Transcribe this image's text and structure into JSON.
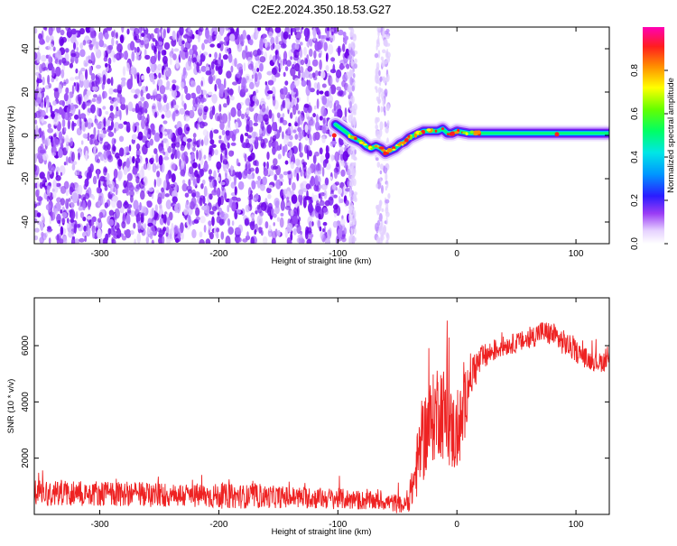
{
  "title": "C2E2.2024.350.18.53.G27",
  "colors": {
    "snr_line": "#ee2222",
    "frame": "#000000",
    "background": "#ffffff",
    "noise_purple": "#7a1ef0",
    "colormap": [
      "#ffffff",
      "#c8a8ff",
      "#7a00f0",
      "#3030ff",
      "#00c8ff",
      "#00ff80",
      "#80ff00",
      "#ffff00",
      "#ff8000",
      "#ff2020",
      "#ff00a0"
    ]
  },
  "chart_data": [
    {
      "type": "heatmap",
      "title": "C2E2.2024.350.18.53.G27",
      "xlabel": "Height of straight line (km)",
      "ylabel": "Frequency (Hz)",
      "xlim": [
        -355,
        128
      ],
      "ylim": [
        -50,
        50
      ],
      "x_ticks": [
        -300,
        -200,
        -100,
        0,
        100
      ],
      "y_ticks": [
        -40,
        -20,
        0,
        20,
        40
      ],
      "grid": false,
      "noise_region_x": [
        -355,
        -88
      ],
      "noise_bands_x": [
        [
          -90,
          -85
        ],
        [
          -68,
          -57
        ]
      ],
      "signal_track": {
        "x": [
          -102,
          -97,
          -92,
          -88,
          -84,
          -80,
          -76,
          -72,
          -68,
          -64,
          -60,
          -56,
          -52,
          -48,
          -44,
          -40,
          -36,
          -32,
          -28,
          -24,
          -20,
          -16,
          -12,
          -8,
          -4,
          0,
          10,
          30,
          60,
          85,
          100,
          128
        ],
        "y": [
          5,
          3,
          1,
          -1,
          -2,
          -3,
          -5,
          -6,
          -5,
          -6,
          -8,
          -7,
          -6,
          -4,
          -3,
          -1,
          0,
          1,
          2,
          2,
          2,
          2,
          3,
          1,
          1,
          2,
          1,
          1,
          1,
          1,
          1,
          1
        ]
      },
      "colorbar": {
        "label": "Normalized spectral amplitude",
        "range": [
          0.0,
          1.0
        ],
        "ticks": [
          0.0,
          0.2,
          0.4,
          0.6,
          0.8
        ],
        "tick_labels": [
          "0.0",
          "0.2",
          "0.4",
          "0.6",
          "0.8"
        ]
      },
      "x_tick_labels": [
        "-300",
        "-200",
        "-100",
        "0",
        "100"
      ],
      "y_tick_labels": [
        "-40",
        "-20",
        "0",
        "20",
        "40"
      ]
    },
    {
      "type": "line",
      "xlabel": "Height of straight line (km)",
      "ylabel": "SNR (10 * v/v)",
      "xlim": [
        -355,
        128
      ],
      "ylim": [
        0,
        7700
      ],
      "x_ticks": [
        -300,
        -200,
        -100,
        0,
        100
      ],
      "y_ticks": [
        2000,
        4000,
        6000
      ],
      "grid": false,
      "envelope": {
        "x": [
          -355,
          -300,
          -250,
          -200,
          -150,
          -100,
          -80,
          -60,
          -50,
          -45,
          -40,
          -35,
          -30,
          -25,
          -20,
          -15,
          -10,
          -5,
          0,
          5,
          10,
          20,
          30,
          40,
          50,
          60,
          70,
          80,
          90,
          100,
          110,
          120,
          128
        ],
        "y_mean": [
          800,
          750,
          700,
          650,
          620,
          560,
          500,
          450,
          380,
          300,
          500,
          1400,
          2500,
          3000,
          3400,
          3900,
          3500,
          3000,
          2800,
          3400,
          4800,
          5500,
          5800,
          6000,
          6100,
          6200,
          6500,
          6400,
          6100,
          5800,
          5500,
          5400,
          5500
        ],
        "y_spread": [
          500,
          450,
          450,
          450,
          400,
          380,
          350,
          300,
          350,
          250,
          400,
          1000,
          1500,
          1600,
          1600,
          1800,
          1700,
          1500,
          1400,
          1400,
          900,
          500,
          400,
          350,
          350,
          400,
          400,
          450,
          450,
          400,
          350,
          350,
          400
        ]
      },
      "x_tick_labels": [
        "-300",
        "-200",
        "-100",
        "0",
        "100"
      ],
      "y_tick_labels": [
        "2000",
        "4000",
        "6000"
      ]
    }
  ]
}
